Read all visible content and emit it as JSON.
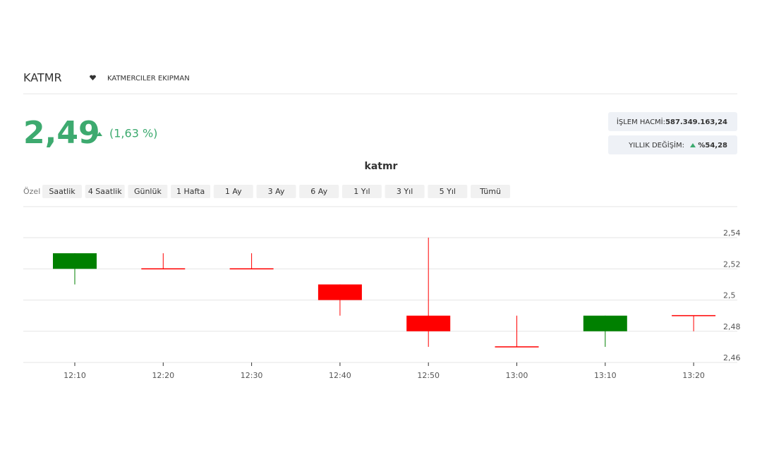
{
  "header": {
    "symbol": "KATMR",
    "company": "KATMERCILER EKIPMAN",
    "price": "2,49",
    "change": "(1,63 %)",
    "stats": [
      {
        "label": "İŞLEM HACMİ:",
        "value": "587.349.163,24"
      },
      {
        "label": "YILLIK DEĞİŞİM:",
        "value": "%54,28"
      }
    ]
  },
  "periods": {
    "custom": "Özel",
    "buttons": [
      "Saatlik",
      "4 Saatlik",
      "Günlük",
      "1 Hafta",
      "1 Ay",
      "3 Ay",
      "6 Ay",
      "1 Yıl",
      "3 Yıl",
      "5 Yıl",
      "Tümü"
    ]
  },
  "chart_data": {
    "type": "candlestick",
    "title": "katmr",
    "x": [
      "12:10",
      "12:20",
      "12:30",
      "12:40",
      "12:50",
      "13:00",
      "13:10",
      "13:20"
    ],
    "open": [
      2.52,
      2.52,
      2.52,
      2.51,
      2.49,
      2.47,
      2.48,
      2.49
    ],
    "high": [
      2.53,
      2.53,
      2.53,
      2.51,
      2.54,
      2.49,
      2.49,
      2.49
    ],
    "low": [
      2.51,
      2.52,
      2.52,
      2.49,
      2.47,
      2.47,
      2.47,
      2.48
    ],
    "close": [
      2.53,
      2.52,
      2.52,
      2.5,
      2.48,
      2.47,
      2.49,
      2.49
    ],
    "up_color": "#008000",
    "down_color": "#ff0000",
    "ylim": [
      2.46,
      2.54
    ],
    "yticks": [
      {
        "value": 2.46,
        "label": "2,46"
      },
      {
        "value": 2.48,
        "label": "2,48"
      },
      {
        "value": 2.5,
        "label": "2,5"
      },
      {
        "value": 2.52,
        "label": "2,52"
      },
      {
        "value": 2.54,
        "label": "2,54"
      }
    ],
    "grid": true
  }
}
